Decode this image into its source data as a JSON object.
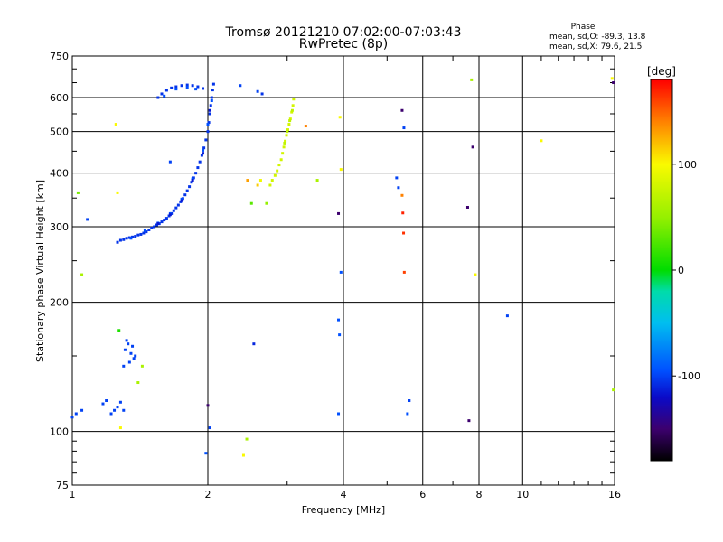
{
  "chart_data": {
    "type": "scatter",
    "title": "Tromsø 20121210 07:02:00-07:03:43",
    "subtitle": "RwPretec (8p)",
    "xlabel": "Frequency [MHz]",
    "ylabel": "Stationary phase Virtual Height [km]",
    "x_scale": "log",
    "y_scale": "log",
    "xlim": [
      1,
      16
    ],
    "ylim": [
      75,
      750
    ],
    "x_ticks": [
      1,
      2,
      4,
      6,
      8,
      10,
      16
    ],
    "x_tick_labels": [
      "1",
      "2",
      "4",
      "6",
      "8",
      "10",
      "16"
    ],
    "y_ticks": [
      75,
      100,
      200,
      300,
      400,
      500,
      600,
      750
    ],
    "y_tick_labels": [
      "75",
      "100",
      "200",
      "300",
      "400",
      "500",
      "600",
      "750"
    ],
    "grid": true,
    "phase_note": {
      "heading": "Phase",
      "line1": "mean, sd,O: -89.3, 13.8",
      "line2": "mean, sd,X:  79.6, 21.5"
    },
    "colorbar": {
      "label": "[deg]",
      "range": [
        -180,
        180
      ],
      "ticks": [
        100,
        0,
        -100
      ],
      "tick_labels": [
        "100",
        "0",
        "-100"
      ]
    },
    "point_groups": [
      {
        "note": "O-trace F2 (f, h, phase)",
        "points": [
          [
            1.26,
            276,
            -105
          ],
          [
            1.28,
            279,
            -105
          ],
          [
            1.3,
            280,
            -105
          ],
          [
            1.32,
            282,
            -105
          ],
          [
            1.34,
            283,
            -105
          ],
          [
            1.36,
            284,
            -105
          ],
          [
            1.38,
            285,
            -105
          ],
          [
            1.4,
            287,
            -105
          ],
          [
            1.42,
            288,
            -105
          ],
          [
            1.44,
            290,
            -105
          ],
          [
            1.46,
            292,
            -105
          ],
          [
            1.48,
            295,
            -105
          ],
          [
            1.5,
            298,
            -105
          ],
          [
            1.52,
            300,
            -105
          ],
          [
            1.54,
            303,
            -105
          ],
          [
            1.56,
            305,
            -105
          ],
          [
            1.58,
            308,
            -105
          ],
          [
            1.6,
            311,
            -105
          ],
          [
            1.62,
            314,
            -105
          ],
          [
            1.64,
            318,
            -105
          ],
          [
            1.66,
            322,
            -105
          ],
          [
            1.68,
            327,
            -105
          ],
          [
            1.7,
            332,
            -105
          ],
          [
            1.72,
            337,
            -105
          ],
          [
            1.74,
            343,
            -105
          ],
          [
            1.76,
            349,
            -105
          ],
          [
            1.78,
            356,
            -105
          ],
          [
            1.8,
            364,
            -105
          ],
          [
            1.82,
            372,
            -105
          ],
          [
            1.84,
            381,
            -105
          ],
          [
            1.86,
            390,
            -105
          ],
          [
            1.88,
            400,
            -105
          ],
          [
            1.9,
            412,
            -105
          ],
          [
            1.92,
            425,
            -105
          ],
          [
            1.94,
            440,
            -105
          ],
          [
            1.96,
            458,
            -105
          ],
          [
            1.98,
            478,
            -105
          ],
          [
            2.0,
            500,
            -105
          ],
          [
            2.01,
            525,
            -105
          ],
          [
            2.02,
            550,
            -105
          ],
          [
            2.03,
            575,
            -105
          ],
          [
            2.04,
            600,
            -105
          ],
          [
            2.05,
            625,
            -105
          ],
          [
            2.06,
            645,
            -105
          ],
          [
            1.35,
            282,
            -95
          ],
          [
            1.45,
            294,
            -95
          ],
          [
            1.55,
            306,
            -95
          ],
          [
            1.65,
            322,
            -95
          ],
          [
            1.75,
            348,
            -95
          ],
          [
            1.85,
            388,
            -95
          ],
          [
            1.95,
            452,
            -95
          ],
          [
            2.0,
            520,
            -95
          ],
          [
            2.04,
            590,
            -95
          ],
          [
            1.55,
            305,
            -115
          ],
          [
            1.65,
            320,
            -115
          ],
          [
            1.75,
            345,
            -115
          ],
          [
            1.85,
            385,
            -115
          ],
          [
            1.95,
            445,
            -115
          ],
          [
            2.02,
            560,
            -115
          ]
        ]
      },
      {
        "note": "O-trace upper cusp",
        "points": [
          [
            1.55,
            600,
            -105
          ],
          [
            1.58,
            612,
            -105
          ],
          [
            1.62,
            624,
            -105
          ],
          [
            1.66,
            632,
            -105
          ],
          [
            1.7,
            636,
            -105
          ],
          [
            1.75,
            640,
            -105
          ],
          [
            1.8,
            642,
            -105
          ],
          [
            1.85,
            640,
            -105
          ],
          [
            1.9,
            636,
            -105
          ],
          [
            1.95,
            630,
            -105
          ],
          [
            1.6,
            605,
            -95
          ],
          [
            1.7,
            628,
            -95
          ],
          [
            1.8,
            634,
            -95
          ],
          [
            1.88,
            628,
            -95
          ]
        ]
      },
      {
        "note": "X-trace F2",
        "points": [
          [
            2.75,
            375,
            80
          ],
          [
            2.78,
            385,
            80
          ],
          [
            2.82,
            395,
            80
          ],
          [
            2.85,
            405,
            80
          ],
          [
            2.88,
            418,
            80
          ],
          [
            2.91,
            430,
            80
          ],
          [
            2.93,
            445,
            80
          ],
          [
            2.95,
            460,
            80
          ],
          [
            2.97,
            475,
            80
          ],
          [
            2.99,
            490,
            80
          ],
          [
            3.01,
            505,
            80
          ],
          [
            3.03,
            520,
            80
          ],
          [
            3.05,
            535,
            80
          ],
          [
            3.07,
            555,
            80
          ],
          [
            3.09,
            575,
            80
          ],
          [
            3.1,
            595,
            80
          ],
          [
            2.96,
            470,
            70
          ],
          [
            3.0,
            500,
            70
          ],
          [
            3.04,
            530,
            70
          ],
          [
            3.08,
            560,
            70
          ],
          [
            2.62,
            385,
            95
          ],
          [
            2.58,
            375,
            115
          ]
        ]
      },
      {
        "note": "Low-altitude O echoes",
        "points": [
          [
            1.0,
            108,
            -100
          ],
          [
            1.02,
            110,
            -100
          ],
          [
            1.05,
            112,
            -100
          ],
          [
            1.17,
            116,
            -100
          ],
          [
            1.19,
            118,
            -100
          ],
          [
            1.22,
            110,
            -100
          ],
          [
            1.24,
            112,
            -100
          ],
          [
            1.26,
            114,
            -100
          ],
          [
            1.28,
            117,
            -100
          ],
          [
            1.3,
            112,
            -100
          ],
          [
            1.31,
            155,
            -100
          ],
          [
            1.33,
            160,
            -100
          ],
          [
            1.35,
            152,
            -100
          ],
          [
            1.37,
            148,
            -100
          ],
          [
            1.34,
            145,
            -100
          ],
          [
            1.32,
            163,
            -100
          ],
          [
            1.36,
            158,
            -100
          ],
          [
            1.38,
            150,
            -100
          ],
          [
            1.3,
            142,
            -100
          ]
        ]
      },
      {
        "note": "Isolated echoes",
        "points": [
          [
            1.27,
            172,
            10
          ],
          [
            1.43,
            142,
            60
          ],
          [
            1.4,
            130,
            60
          ],
          [
            1.03,
            360,
            40
          ],
          [
            1.05,
            232,
            60
          ],
          [
            1.08,
            312,
            -100
          ],
          [
            1.26,
            360,
            100
          ],
          [
            1.25,
            520,
            100
          ],
          [
            1.28,
            102,
            100
          ],
          [
            1.65,
            425,
            -100
          ],
          [
            1.98,
            89,
            -95
          ],
          [
            2.4,
            88,
            100
          ],
          [
            2.44,
            96,
            60
          ],
          [
            2.5,
            340,
            30
          ],
          [
            2.53,
            160,
            -110
          ],
          [
            2.45,
            385,
            130
          ],
          [
            2.36,
            640,
            -100
          ],
          [
            2.58,
            620,
            -100
          ],
          [
            2.64,
            612,
            -105
          ],
          [
            3.3,
            515,
            140
          ],
          [
            3.5,
            385,
            60
          ],
          [
            3.9,
            322,
            -150
          ],
          [
            3.9,
            182,
            -95
          ],
          [
            3.92,
            168,
            -95
          ],
          [
            3.9,
            110,
            -95
          ],
          [
            3.95,
            235,
            -95
          ],
          [
            3.93,
            540,
            100
          ],
          [
            3.95,
            408,
            100
          ],
          [
            5.25,
            390,
            -100
          ],
          [
            5.3,
            370,
            -100
          ],
          [
            5.4,
            355,
            140
          ],
          [
            5.42,
            323,
            170
          ],
          [
            5.44,
            290,
            165
          ],
          [
            5.46,
            235,
            160
          ],
          [
            5.4,
            560,
            -150
          ],
          [
            5.45,
            510,
            -100
          ],
          [
            5.6,
            118,
            -100
          ],
          [
            5.55,
            110,
            -95
          ],
          [
            7.6,
            106,
            -150
          ],
          [
            7.55,
            333,
            -150
          ],
          [
            7.7,
            660,
            60
          ],
          [
            7.75,
            460,
            -150
          ],
          [
            7.85,
            232,
            100
          ],
          [
            9.25,
            186,
            -100
          ],
          [
            11.0,
            476,
            100
          ],
          [
            15.9,
            125,
            60
          ],
          [
            15.9,
            650,
            -150
          ],
          [
            15.8,
            665,
            100
          ],
          [
            2.0,
            115,
            -150
          ],
          [
            2.02,
            102,
            -100
          ],
          [
            2.7,
            340,
            50
          ]
        ]
      }
    ]
  }
}
